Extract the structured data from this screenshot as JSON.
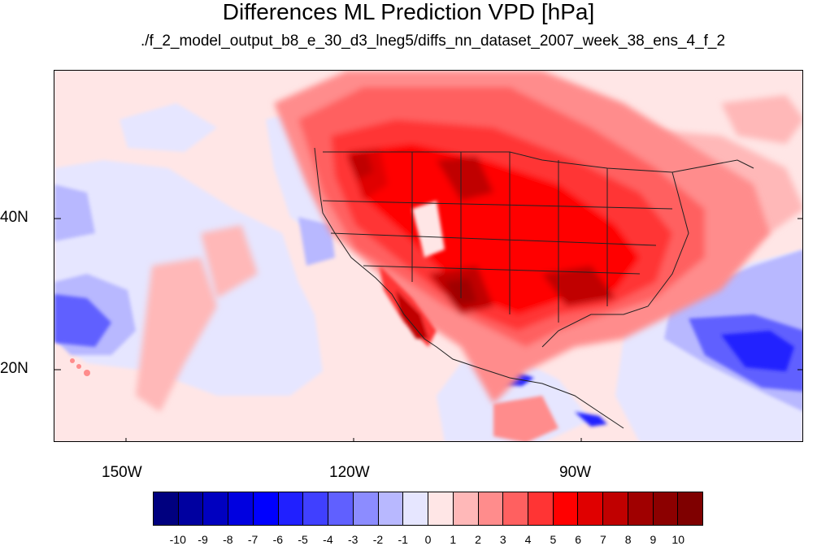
{
  "title": "Differences ML Prediction VPD [hPa]",
  "subtitle": "./f_2_model_output_b8_e_30_d3_lneg5/diffs_nn_dataset_2007_week_38_ens_4_f_2",
  "map": {
    "lon_range": [
      -161,
      -62
    ],
    "lat_range": [
      11,
      60
    ],
    "lon_ticks": [
      "150W",
      "120W",
      "90W"
    ],
    "lat_ticks": [
      "40N",
      "20N"
    ],
    "background_level": "0 to 1"
  },
  "colorbar": {
    "labels": [
      "-10",
      "-9",
      "-8",
      "-7",
      "-6",
      "-5",
      "-4",
      "-3",
      "-2",
      "-1",
      "0",
      "1",
      "2",
      "3",
      "4",
      "5",
      "6",
      "7",
      "8",
      "9",
      "10"
    ],
    "colors": [
      "#00007f",
      "#0000a0",
      "#0000c0",
      "#0000e0",
      "#0000ff",
      "#2020ff",
      "#4040ff",
      "#6060ff",
      "#8c8cff",
      "#b8b8ff",
      "#e6e6ff",
      "#ffe6e6",
      "#ffb8b8",
      "#ff8c8c",
      "#ff6060",
      "#ff3434",
      "#ff0000",
      "#e00000",
      "#c00000",
      "#a00000",
      "#8c0000",
      "#7f0000"
    ]
  }
}
